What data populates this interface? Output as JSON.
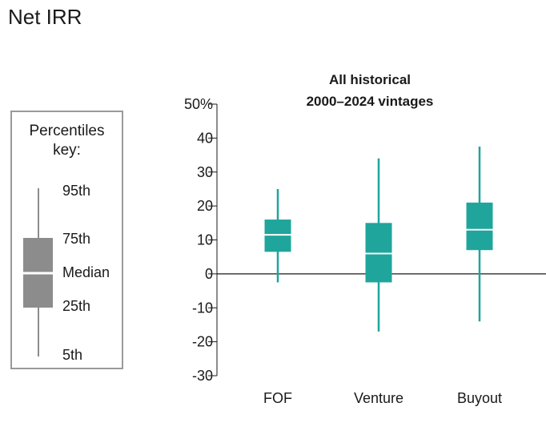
{
  "title": "Net IRR",
  "key": {
    "title_line1": "Percentiles",
    "title_line2": "key:",
    "labels": [
      "95th",
      "75th",
      "Median",
      "25th",
      "5th"
    ]
  },
  "colors": {
    "box": "#1fa59c",
    "key_box": "#8c8c8c",
    "axis": "#1a1a1a",
    "median": "#ffffff"
  },
  "chart_data": {
    "type": "boxplot",
    "title": "All historical",
    "subtitle": "2000–2024 vintages",
    "categories": [
      "FOF",
      "Venture",
      "Buyout"
    ],
    "ylim": [
      -30,
      50
    ],
    "yticks": [
      {
        "value": 50,
        "label": "50%"
      },
      {
        "value": 40,
        "label": "40"
      },
      {
        "value": 30,
        "label": "30"
      },
      {
        "value": 20,
        "label": "20"
      },
      {
        "value": 10,
        "label": "10"
      },
      {
        "value": 0,
        "label": "0"
      },
      {
        "value": -10,
        "label": "-10"
      },
      {
        "value": -20,
        "label": "-20"
      },
      {
        "value": -30,
        "label": "-30"
      }
    ],
    "series": [
      {
        "category": "FOF",
        "p5": -2.5,
        "p25": 6.5,
        "median": 11.5,
        "p75": 16,
        "p95": 25
      },
      {
        "category": "Venture",
        "p5": -17,
        "p25": -2.5,
        "median": 6,
        "p75": 15,
        "p95": 34
      },
      {
        "category": "Buyout",
        "p5": -14,
        "p25": 7,
        "median": 13,
        "p75": 21,
        "p95": 37.5
      }
    ],
    "grid": false,
    "legend": "left"
  }
}
